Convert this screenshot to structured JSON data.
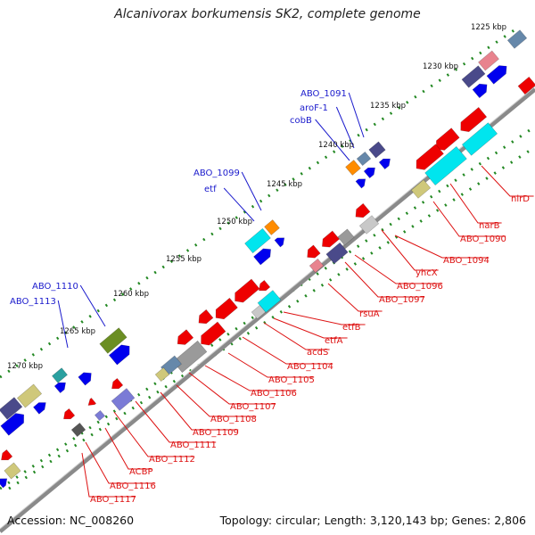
{
  "title": "Alcanivorax borkumensis SK2, complete genome",
  "footer": {
    "accession": "Accession: NC_008260",
    "topology": "Topology: circular; Length: 3,120,143 bp; Genes: 2,806"
  },
  "colors": {
    "backbone": "#7d7d7d",
    "dots": "#228822",
    "forward_label": "#1a1acc",
    "reverse_label": "#dd1111",
    "blue": "#0000ee",
    "red": "#ee0000",
    "cyan": "#00e5ee",
    "navy": "#4a4a8a",
    "olive": "#6b8e23",
    "khaki": "#cfc87a",
    "orange": "#ff8c00",
    "gray": "#9a9a9a",
    "lightgray": "#c8c8c8",
    "periwinkle": "#7b7bd6",
    "steel": "#6688aa",
    "teal": "#2aa0a0"
  },
  "kbp_ticks": [
    "1225 kbp",
    "1230 kbp",
    "1235 kbp",
    "1240 kbp",
    "1245 kbp",
    "1250 kbp",
    "1255 kbp",
    "1260 kbp",
    "1265 kbp",
    "1270 kbp"
  ],
  "forward_labels": [
    "ABO_1091",
    "aroF-1",
    "cobB",
    "ABO_1099",
    "etf",
    "ABO_1110",
    "ABO_1113"
  ],
  "reverse_labels": [
    "nirD",
    "narB",
    "ABO_1090",
    "ABO_1094",
    "yhcX",
    "ABO_1096",
    "ABO_1097",
    "rsuA",
    "etfB",
    "etfA",
    "acdS",
    "ABO_1104",
    "ABO_1105",
    "ABO_1106",
    "ABO_1107",
    "ABO_1108",
    "ABO_1109",
    "ABO_1111",
    "ABO_1112",
    "ACBP",
    "ABO_1116",
    "ABO_1117"
  ]
}
